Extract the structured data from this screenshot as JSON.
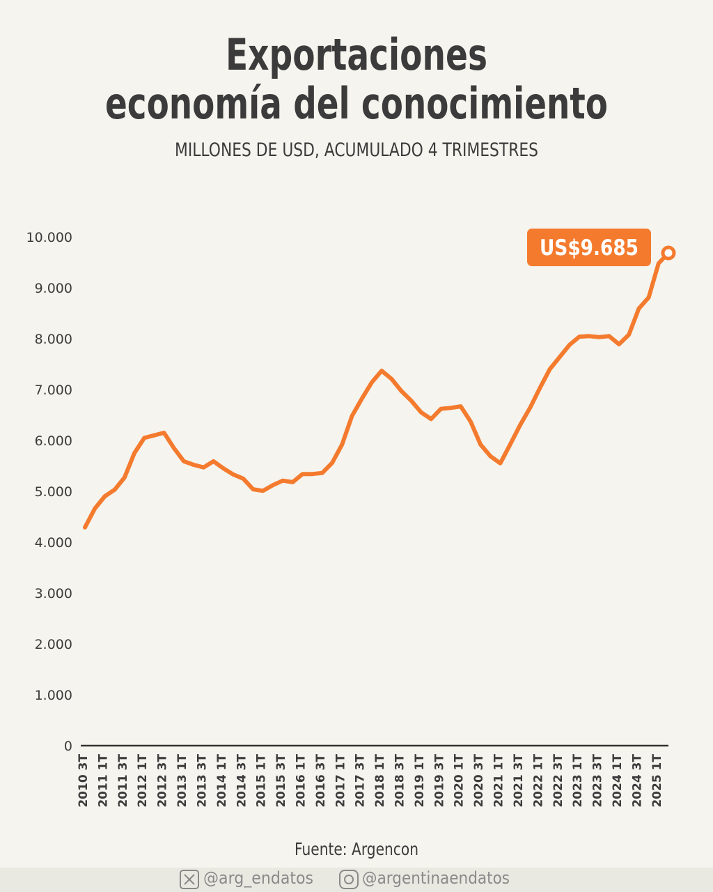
{
  "chart_data": {
    "type": "line",
    "title": [
      "Exportaciones",
      "economía del conocimiento"
    ],
    "subtitle": "MILLONES DE USD, ACUMULADO 4 TRIMESTRES",
    "categories": [
      "2010 3T",
      null,
      "2011 1T",
      null,
      "2011 3T",
      null,
      "2012 1T",
      null,
      "2012 3T",
      null,
      "2013 1T",
      null,
      "2013 3T",
      null,
      "2014 1T",
      null,
      "2014 3T",
      null,
      "2015 1T",
      null,
      "2015 3T",
      null,
      "2016 1T",
      null,
      "2016 3T",
      null,
      "2017 1T",
      null,
      "2017 3T",
      null,
      "2018 1T",
      null,
      "2018 3T",
      null,
      "2019 1T",
      null,
      "2019 3T",
      null,
      "2020 1T",
      null,
      "2020 3T",
      null,
      "2021 1T",
      null,
      "2021 3T",
      null,
      "2022 1T",
      null,
      "2022 3T",
      null,
      "2023 1T",
      null,
      "2023 3T",
      null,
      "2024 1T",
      null,
      "2024 3T",
      null,
      "2025 1T",
      null
    ],
    "series": [
      {
        "color": "#f47a2e",
        "values": [
          4290,
          4660,
          4900,
          5030,
          5270,
          5750,
          6050,
          6100,
          6150,
          5850,
          5590,
          5520,
          5470,
          5590,
          5450,
          5330,
          5250,
          5040,
          5010,
          5120,
          5210,
          5180,
          5340,
          5340,
          5360,
          5560,
          5920,
          6480,
          6820,
          7140,
          7370,
          7210,
          6970,
          6780,
          6550,
          6420,
          6620,
          6640,
          6670,
          6370,
          5920,
          5690,
          5550,
          5920,
          6300,
          6640,
          7030,
          7400,
          7640,
          7880,
          8040,
          8050,
          8030,
          8050,
          7890,
          8080,
          8590,
          8810,
          9480,
          9685
        ],
        "value_labels": [
          null,
          null,
          null,
          null,
          null,
          null,
          null,
          null,
          null,
          null,
          null,
          null,
          null,
          null,
          null,
          null,
          null,
          null,
          null,
          null,
          null,
          null,
          null,
          null,
          null,
          null,
          null,
          null,
          null,
          null,
          null,
          null,
          null,
          null,
          null,
          null,
          null,
          null,
          null,
          null,
          null,
          null,
          null,
          null,
          null,
          null,
          null,
          null,
          null,
          null,
          null,
          null,
          null,
          null,
          null,
          null,
          null,
          null,
          null,
          "US$9.685"
        ]
      }
    ],
    "ylim": [
      0,
      10000
    ],
    "yticks": [
      0,
      {
        "value": 1000,
        "label": "1.000"
      },
      {
        "value": 2000,
        "label": "2.000"
      },
      {
        "value": 3000,
        "label": "3.000"
      },
      {
        "value": 4000,
        "label": "4.000"
      },
      {
        "value": 5000,
        "label": "5.000"
      },
      {
        "value": 6000,
        "label": "6.000"
      },
      {
        "value": 7000,
        "label": "7.000"
      },
      {
        "value": 8000,
        "label": "8.000"
      },
      {
        "value": 9000,
        "label": "9.000"
      },
      {
        "value": 10000,
        "label": "10.000"
      }
    ],
    "source": "Fuente: Argencon",
    "social": [
      "@arg_endatos",
      "@argentinaendatos"
    ]
  }
}
